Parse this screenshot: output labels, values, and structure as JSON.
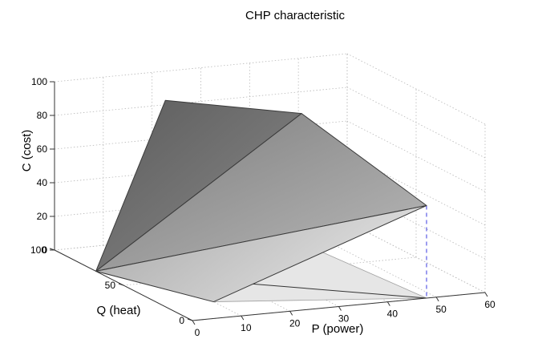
{
  "chart_data": {
    "type": "surface3d",
    "title": "CHP characteristic",
    "xlabel": "P (power)",
    "ylabel": "Q (heat)",
    "zlabel": "C (cost)",
    "xlim": [
      0,
      60
    ],
    "ylim": [
      0,
      100
    ],
    "zlim": [
      0,
      100
    ],
    "xticks": [
      "0",
      "10",
      "20",
      "30",
      "40",
      "50",
      "60"
    ],
    "yticks": [
      "0",
      "50",
      "100"
    ],
    "zticks": [
      "0",
      "20",
      "40",
      "60",
      "80",
      "100"
    ],
    "grid": true,
    "vertices": [
      {
        "id": "A",
        "P": 0,
        "Q": 70,
        "C": 0
      },
      {
        "id": "B",
        "P": 10,
        "Q": 55,
        "C": 105
      },
      {
        "id": "C",
        "P": 45,
        "Q": 80,
        "C": 77
      },
      {
        "id": "D",
        "P": 48,
        "Q": 0,
        "C": 55
      },
      {
        "id": "E",
        "P": 10,
        "Q": 20,
        "C": 0
      }
    ],
    "faces": [
      [
        "A",
        "B",
        "C"
      ],
      [
        "A",
        "C",
        "D"
      ],
      [
        "A",
        "D",
        "E"
      ]
    ],
    "colors": {
      "surface_dark": "#6e6e6e",
      "surface_light": "#d8d8d8",
      "floor": "#e6e6e6",
      "projection_line": "#3a3ae0"
    }
  }
}
